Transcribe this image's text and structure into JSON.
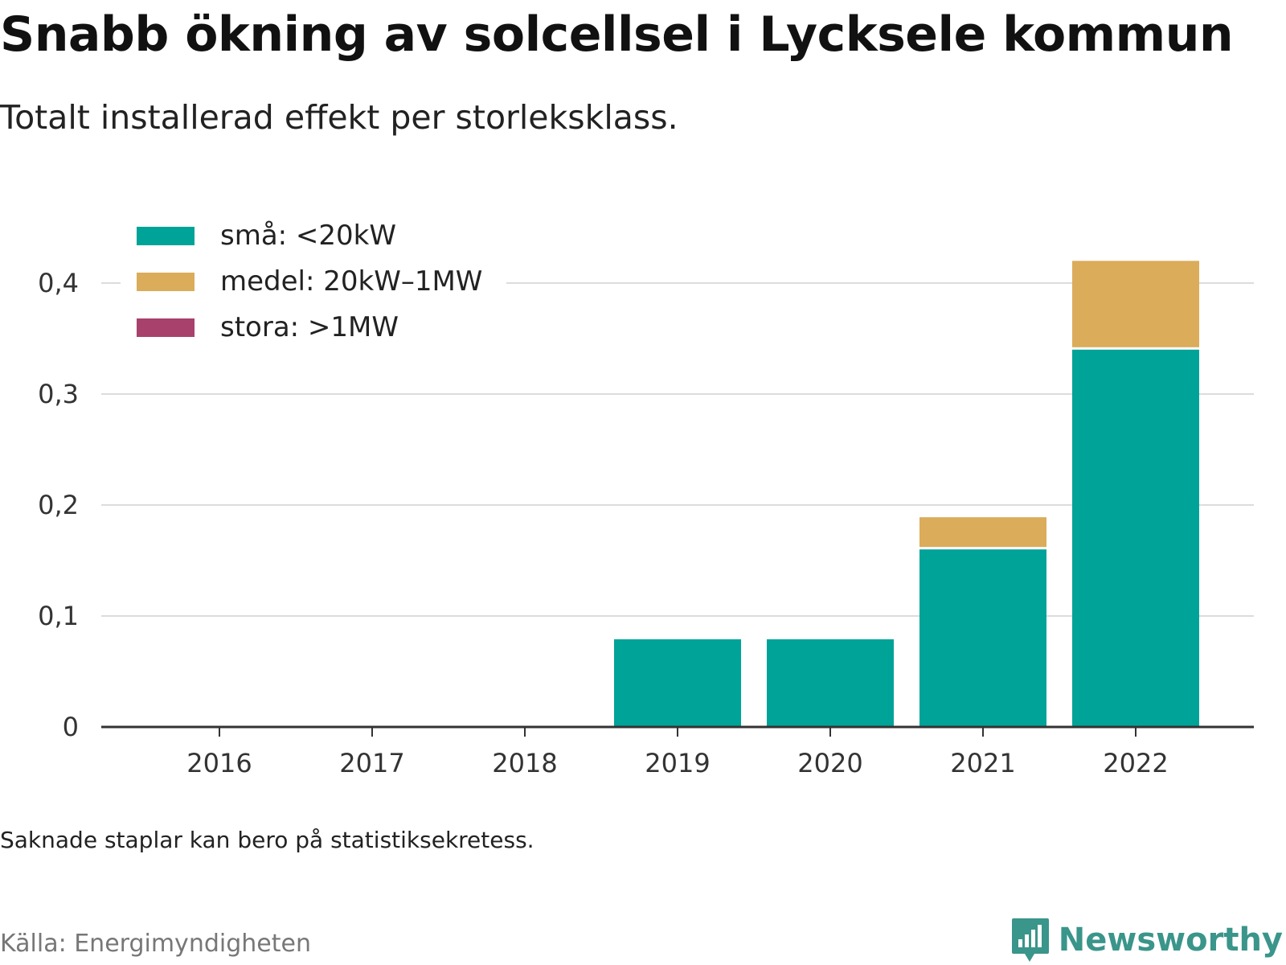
{
  "header": {
    "title": "Snabb ökning av solcellsel i Lycksele kommun",
    "subtitle": "Totalt installerad effekt per storleksklass."
  },
  "footer": {
    "note": "Saknade staplar kan bero på statistiksekretess.",
    "source": "Källa: Energimyndigheten",
    "brand": "Newsworthy"
  },
  "colors": {
    "small": "#00a398",
    "medium": "#dbac5a",
    "large": "#a8416b",
    "brand": "#3a958a"
  },
  "chart_data": {
    "type": "bar",
    "stacked": true,
    "categories": [
      "2016",
      "2017",
      "2018",
      "2019",
      "2020",
      "2021",
      "2022"
    ],
    "series": [
      {
        "name": "små: <20kW",
        "color": "#00a398",
        "values": [
          0,
          0,
          0,
          0.079,
          0.079,
          0.16,
          0.34
        ]
      },
      {
        "name": "medel: 20kW–1MW",
        "color": "#dbac5a",
        "values": [
          0,
          0,
          0,
          0,
          0,
          0.029,
          0.08
        ]
      },
      {
        "name": "stora: >1MW",
        "color": "#a8416b",
        "values": [
          0,
          0,
          0,
          0,
          0,
          0,
          0
        ]
      }
    ],
    "y_ticks": [
      "0",
      "0,1",
      "0,2",
      "0,3",
      "0,4"
    ],
    "y_tick_values": [
      0,
      0.1,
      0.2,
      0.3,
      0.4
    ],
    "ylim": [
      0,
      0.4
    ],
    "grid": true,
    "legend_position": "top-left"
  }
}
